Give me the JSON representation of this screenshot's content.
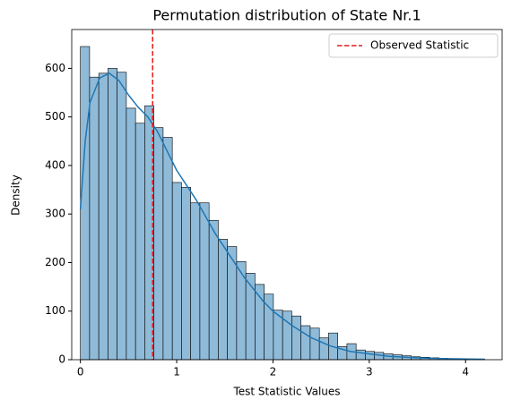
{
  "chart_data": {
    "type": "histogram",
    "title": "Permutation distribution of State Nr.1",
    "x_label": "Test Statistic Values",
    "y_label": "Density",
    "bins": [
      0,
      0.0955,
      0.1909,
      0.2864,
      0.3818,
      0.4773,
      0.5727,
      0.6682,
      0.7636,
      0.8591,
      0.9545,
      1.05,
      1.1455,
      1.2409,
      1.3364,
      1.4318,
      1.5273,
      1.6227,
      1.7182,
      1.8136,
      1.9091,
      2.0045,
      2.1,
      2.1955,
      2.2909,
      2.3864,
      2.4818,
      2.5773,
      2.6727,
      2.7682,
      2.8636,
      2.9591,
      3.0545,
      3.15,
      3.2455,
      3.3409,
      3.4364,
      3.5318,
      3.6273,
      3.7227,
      3.8182,
      3.9136,
      4.0091,
      4.1045,
      4.2
    ],
    "counts": [
      645,
      582,
      590,
      600,
      592,
      518,
      487,
      523,
      478,
      458,
      365,
      355,
      323,
      323,
      287,
      248,
      233,
      202,
      178,
      155,
      135,
      102,
      100,
      90,
      70,
      65,
      45,
      55,
      27,
      33,
      20,
      17,
      15,
      12,
      10,
      8,
      6,
      5,
      4,
      3,
      2,
      2,
      1,
      1
    ],
    "color": "#8fbbd9",
    "kde": {
      "color": "#1f77b4",
      "x": [
        0,
        0.05,
        0.1,
        0.2,
        0.3,
        0.4,
        0.5,
        0.6,
        0.7,
        0.8,
        0.9,
        1.0,
        1.1,
        1.2,
        1.3,
        1.4,
        1.5,
        1.6,
        1.7,
        1.8,
        1.9,
        2.0,
        2.2,
        2.4,
        2.6,
        2.8,
        3.0,
        3.2,
        3.5,
        3.8,
        4.2
      ],
      "values": [
        310,
        450,
        530,
        580,
        590,
        575,
        545,
        520,
        500,
        470,
        430,
        390,
        360,
        330,
        295,
        260,
        230,
        200,
        170,
        145,
        120,
        100,
        70,
        45,
        28,
        17,
        12,
        7,
        4,
        2,
        1
      ]
    },
    "vline": {
      "name": "Observed Statistic",
      "value": 0.75,
      "color": "#e41a1c"
    },
    "xlim": [
      -0.09,
      4.38
    ],
    "ylim": [
      0,
      680
    ],
    "xticks": [
      0,
      1,
      2,
      3,
      4
    ],
    "yticks": [
      0,
      100,
      200,
      300,
      400,
      500,
      600
    ],
    "legend": "upper right"
  }
}
